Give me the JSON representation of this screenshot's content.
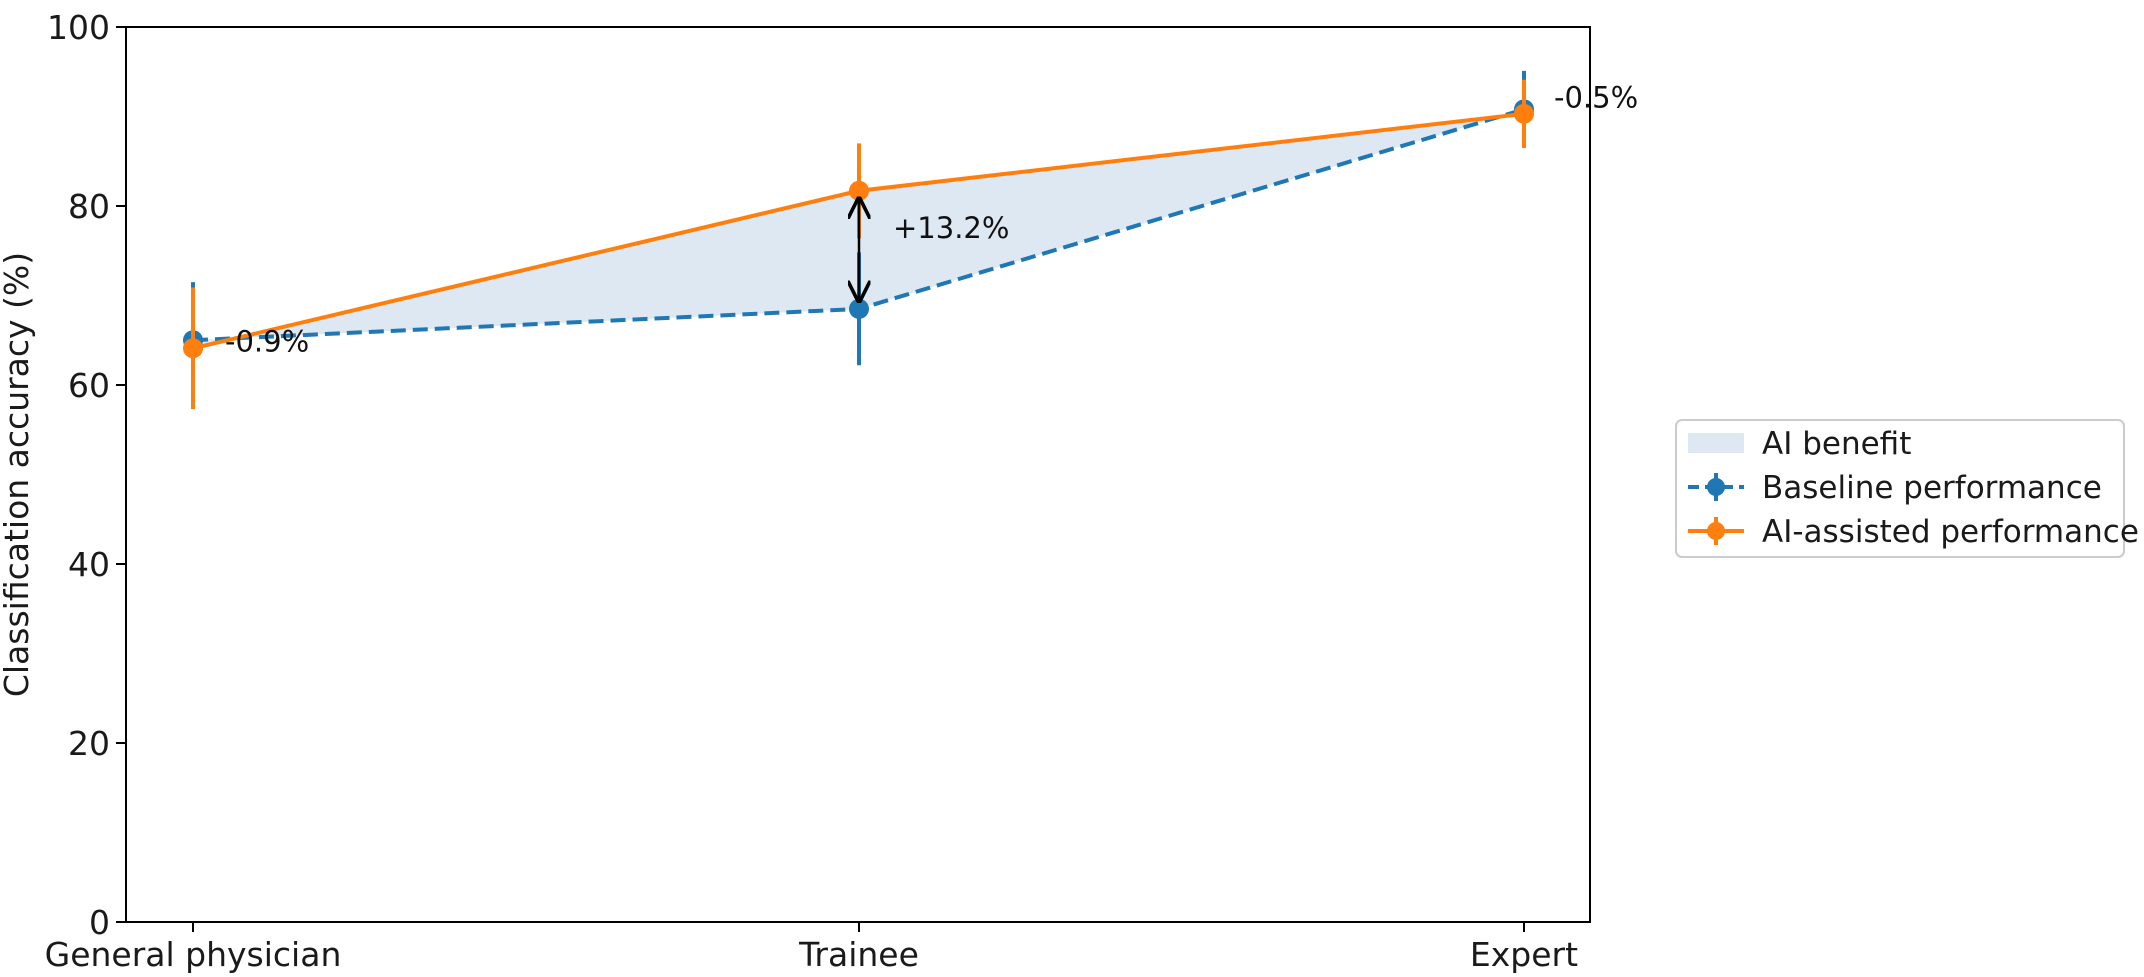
{
  "chart_data": {
    "type": "line",
    "title": "",
    "xlabel": "",
    "ylabel": "Classification accuracy (%)",
    "categories": [
      "General physician",
      "Trainee",
      "Expert"
    ],
    "ylim": [
      0,
      100
    ],
    "yticks": [
      0,
      20,
      40,
      60,
      80,
      100
    ],
    "grid": false,
    "legend_position": "right",
    "series": [
      {
        "name": "Baseline performance",
        "values": [
          65.0,
          68.5,
          90.8
        ],
        "error": [
          6.5,
          6.3,
          4.3
        ],
        "color": "#1f77b4",
        "line_style": "dashed"
      },
      {
        "name": "AI-assisted performance",
        "values": [
          64.1,
          81.7,
          90.3
        ],
        "error": [
          6.8,
          5.3,
          3.8
        ],
        "color": "#ff7f0e",
        "line_style": "solid"
      }
    ],
    "fill": {
      "label": "AI benefit",
      "color": "#dde8f3"
    },
    "annotations": [
      {
        "category_index": 0,
        "text": "-0.9%"
      },
      {
        "category_index": 1,
        "text": "+13.2%",
        "arrow": true
      },
      {
        "category_index": 2,
        "text": "-0.5%"
      }
    ]
  }
}
